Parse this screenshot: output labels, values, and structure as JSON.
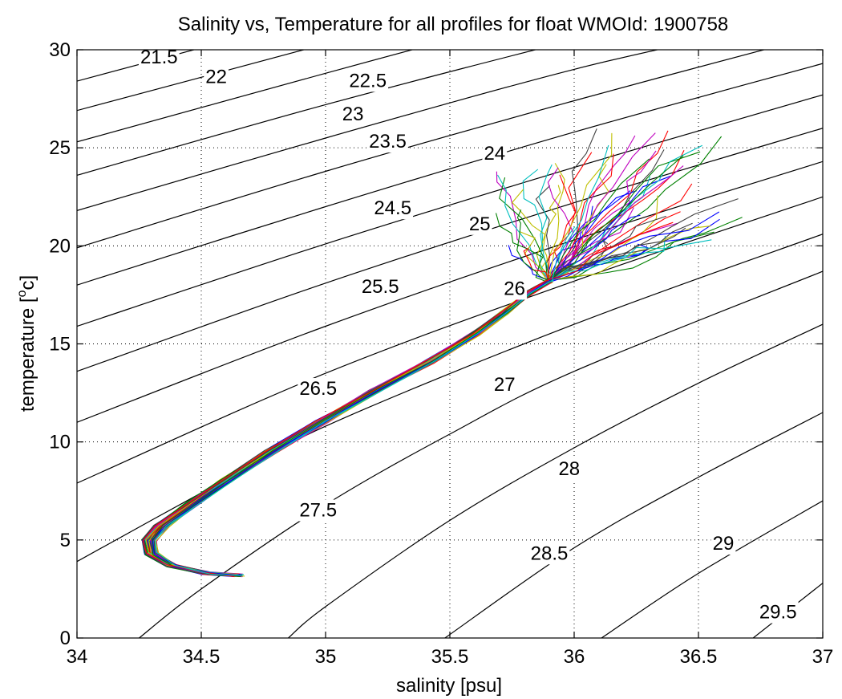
{
  "chart_data": {
    "type": "line",
    "title": "Salinity vs, Temperature for all profiles for float WMOId: 1900758",
    "xlabel": "salinity [psu]",
    "ylabel_main": "temperature [",
    "ylabel_sup": "o",
    "ylabel_tail": "c]",
    "xlim": [
      34,
      37
    ],
    "ylim": [
      0,
      30
    ],
    "grid": "dotted",
    "x_ticks": [
      "34",
      "34.5",
      "35",
      "35.5",
      "36",
      "36.5",
      "37"
    ],
    "y_ticks": [
      "0",
      "5",
      "10",
      "15",
      "20",
      "25",
      "30"
    ],
    "x_tick_values": [
      34,
      34.5,
      35,
      35.5,
      36,
      36.5,
      37
    ],
    "y_tick_values": [
      0,
      5,
      10,
      15,
      20,
      25,
      30
    ],
    "density_contours": [
      {
        "label": "21.5",
        "points": [
          [
            34.0,
            28.4
          ],
          [
            35.0,
            31.8
          ]
        ],
        "label_at": [
          34.33,
          29.3
        ]
      },
      {
        "label": "22",
        "points": [
          [
            34.0,
            26.9
          ],
          [
            35.0,
            30.3
          ],
          [
            35.2,
            31.0
          ]
        ],
        "label_at": [
          34.56,
          28.3
        ]
      },
      {
        "label": "22.5",
        "points": [
          [
            34.0,
            25.3
          ],
          [
            35.0,
            28.8
          ],
          [
            35.5,
            30.5
          ],
          [
            35.7,
            31.0
          ]
        ],
        "label_at": [
          35.17,
          28.1
        ]
      },
      {
        "label": "23",
        "points": [
          [
            34.0,
            23.6
          ],
          [
            35.0,
            27.2
          ],
          [
            36.0,
            30.5
          ],
          [
            36.2,
            31.0
          ]
        ],
        "label_at": [
          35.11,
          26.4
        ]
      },
      {
        "label": "23.5",
        "points": [
          [
            34.0,
            21.8
          ],
          [
            35.0,
            25.5
          ],
          [
            36.0,
            29.0
          ],
          [
            36.7,
            31.0
          ]
        ],
        "label_at": [
          35.25,
          25.0
        ]
      },
      {
        "label": "24",
        "points": [
          [
            34.0,
            19.9
          ],
          [
            35.0,
            23.8
          ],
          [
            36.0,
            27.4
          ],
          [
            37.0,
            30.8
          ]
        ],
        "label_at": [
          35.68,
          24.4
        ]
      },
      {
        "label": "24.5",
        "points": [
          [
            34.0,
            18.0
          ],
          [
            35.0,
            22.0
          ],
          [
            36.0,
            25.8
          ],
          [
            37.0,
            29.3
          ]
        ],
        "label_at": [
          35.27,
          21.6
        ]
      },
      {
        "label": "25",
        "points": [
          [
            34.0,
            15.9
          ],
          [
            35.0,
            20.1
          ],
          [
            36.0,
            24.0
          ],
          [
            37.0,
            27.7
          ]
        ],
        "label_at": [
          35.62,
          20.8
        ]
      },
      {
        "label": "25.5",
        "points": [
          [
            34.0,
            13.6
          ],
          [
            35.0,
            18.1
          ],
          [
            36.0,
            22.2
          ],
          [
            37.0,
            26.0
          ]
        ],
        "label_at": [
          35.22,
          17.6
        ]
      },
      {
        "label": "26",
        "points": [
          [
            34.0,
            11.0
          ],
          [
            35.0,
            15.9
          ],
          [
            36.0,
            20.3
          ],
          [
            37.0,
            24.3
          ]
        ],
        "label_at": [
          35.76,
          17.5
        ]
      },
      {
        "label": "26.5",
        "points": [
          [
            34.0,
            7.9
          ],
          [
            35.0,
            13.5
          ],
          [
            36.0,
            18.2
          ],
          [
            37.0,
            22.5
          ]
        ],
        "label_at": [
          34.97,
          12.4
        ]
      },
      {
        "label": "27",
        "points": [
          [
            34.0,
            3.9
          ],
          [
            34.5,
            7.4
          ],
          [
            35.0,
            10.8
          ],
          [
            36.0,
            16.0
          ],
          [
            37.0,
            20.6
          ]
        ],
        "label_at": [
          35.72,
          12.6
        ]
      },
      {
        "label": "27.5",
        "points": [
          [
            34.25,
            0.0
          ],
          [
            34.5,
            2.5
          ],
          [
            35.0,
            6.8
          ],
          [
            35.5,
            10.4
          ],
          [
            36.0,
            13.6
          ],
          [
            37.0,
            18.7
          ]
        ],
        "label_at": [
          34.97,
          6.2
        ]
      },
      {
        "label": "28",
        "points": [
          [
            34.85,
            0.0
          ],
          [
            35.0,
            1.6
          ],
          [
            35.5,
            6.0
          ],
          [
            36.0,
            9.7
          ],
          [
            36.5,
            13.0
          ],
          [
            37.0,
            16.0
          ]
        ],
        "label_at": [
          35.98,
          8.3
        ]
      },
      {
        "label": "28.5",
        "points": [
          [
            35.48,
            0.0
          ],
          [
            36.0,
            4.6
          ],
          [
            36.5,
            8.2
          ],
          [
            37.0,
            11.5
          ]
        ],
        "label_at": [
          35.9,
          4.0
        ]
      },
      {
        "label": "29",
        "points": [
          [
            36.11,
            0.0
          ],
          [
            36.5,
            3.3
          ],
          [
            37.0,
            7.0
          ]
        ],
        "label_at": [
          36.6,
          4.5
        ]
      },
      {
        "label": "29.5",
        "points": [
          [
            36.72,
            0.0
          ],
          [
            37.0,
            2.8
          ]
        ],
        "label_at": [
          36.82,
          1.0
        ]
      }
    ],
    "profile_count": 60,
    "profile_base_path": [
      [
        34.65,
        3.2
      ],
      [
        34.52,
        3.3
      ],
      [
        34.38,
        3.7
      ],
      [
        34.3,
        4.3
      ],
      [
        34.29,
        5.0
      ],
      [
        34.34,
        5.7
      ],
      [
        34.46,
        6.8
      ],
      [
        34.6,
        8.0
      ],
      [
        34.78,
        9.5
      ],
      [
        34.98,
        11.0
      ],
      [
        35.2,
        12.6
      ],
      [
        35.42,
        14.1
      ],
      [
        35.6,
        15.5
      ],
      [
        35.72,
        16.6
      ],
      [
        35.82,
        17.6
      ],
      [
        35.9,
        18.2
      ]
    ],
    "profile_colors": [
      "#0000ff",
      "#008000",
      "#ff0000",
      "#00bfbf",
      "#bf00bf",
      "#bfbf00",
      "#404040"
    ]
  }
}
